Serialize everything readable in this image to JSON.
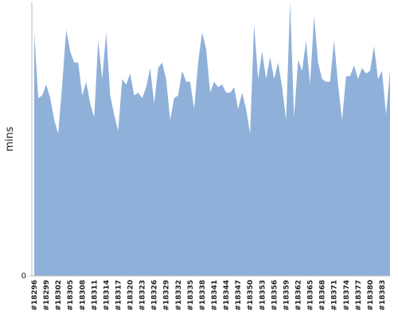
{
  "chart_data": {
    "type": "area",
    "y_label": "mins",
    "color": "#8fb0d9",
    "categories": [
      "#18296",
      null,
      null,
      "#18299",
      null,
      null,
      "#18302",
      null,
      null,
      "#18305",
      null,
      null,
      "#18308",
      null,
      null,
      "#18311",
      null,
      null,
      "#18314",
      null,
      null,
      "#18317",
      null,
      null,
      "#18320",
      null,
      null,
      "#18323",
      null,
      null,
      "#18326",
      null,
      null,
      "#18329",
      null,
      null,
      "#18332",
      null,
      null,
      "#18335",
      null,
      null,
      "#18338",
      null,
      null,
      "#18341",
      null,
      null,
      "#18344",
      null,
      null,
      "#18347",
      null,
      null,
      "#18350",
      null,
      null,
      "#18353",
      null,
      null,
      "#18356",
      null,
      null,
      "#18359",
      null,
      null,
      "#18362",
      null,
      null,
      "#18365",
      null,
      null,
      "#18368",
      null,
      null,
      "#18371",
      null,
      null,
      "#18374",
      null,
      null,
      "#18377",
      null,
      null,
      "#18380",
      null,
      null,
      "#18383",
      null,
      null
    ],
    "values": [
      89,
      65,
      66,
      70,
      65,
      57,
      52,
      70,
      90,
      82,
      78,
      78,
      66,
      71,
      63,
      58,
      86,
      72,
      89,
      66,
      59,
      53,
      72,
      70,
      74,
      66,
      67,
      65,
      69,
      76,
      63,
      76,
      78,
      72,
      57,
      65,
      66,
      75,
      71,
      71,
      61,
      78,
      89,
      83,
      67,
      71,
      69,
      70,
      67,
      67,
      69,
      61,
      67,
      61,
      52,
      92,
      72,
      82,
      72,
      80,
      72,
      78,
      69,
      57,
      100,
      58,
      79,
      75,
      86,
      70,
      95,
      78,
      72,
      71,
      71,
      86,
      70,
      57,
      73,
      73,
      77,
      72,
      76,
      74,
      75,
      84,
      72,
      75,
      59,
      75
    ],
    "ylim": [
      0,
      100
    ],
    "yticks": [
      0
    ]
  }
}
